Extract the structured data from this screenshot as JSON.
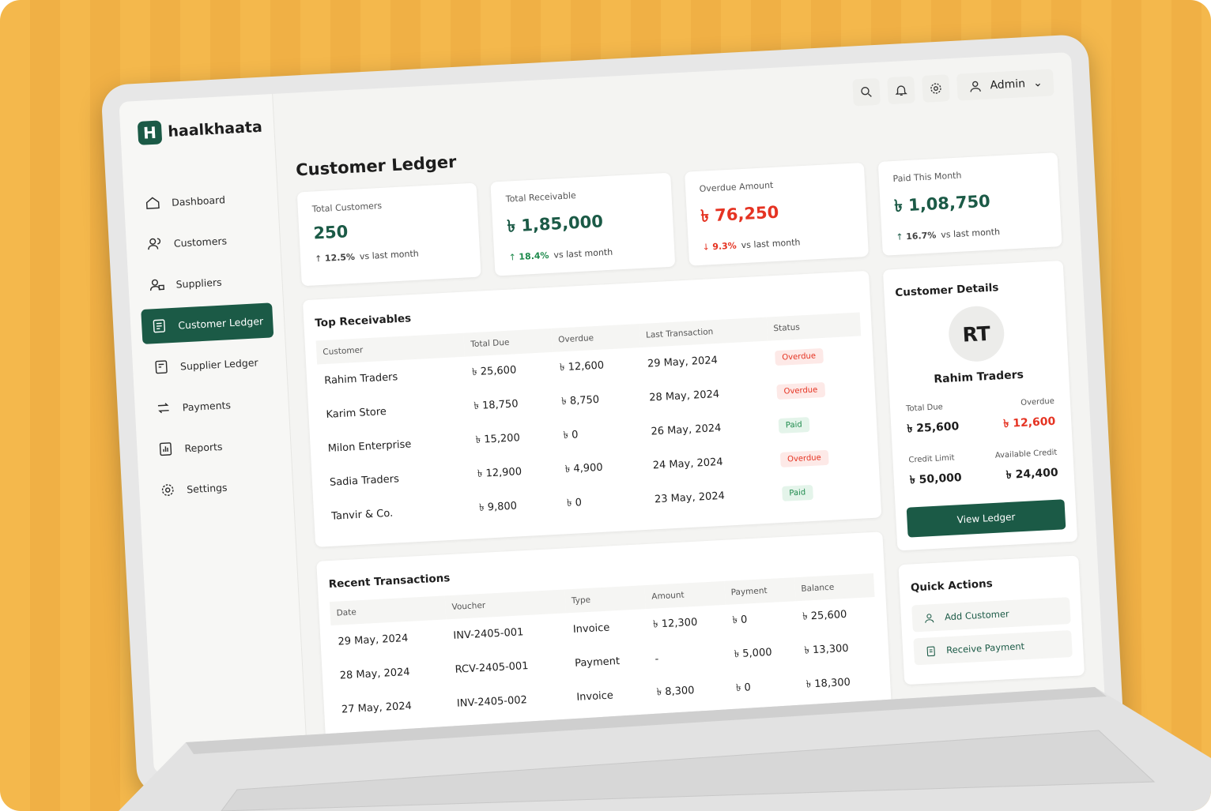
{
  "brand": {
    "logo": "H",
    "name": "haalkhaata"
  },
  "header": {
    "user": "Admin"
  },
  "nav": [
    "Dashboard",
    "Customers",
    "Suppliers",
    "Customer Ledger",
    "Supplier Ledger",
    "Payments",
    "Reports",
    "Settings"
  ],
  "page_title": "Customer Ledger",
  "stats": [
    {
      "label": "Total Customers",
      "value": "250",
      "change": "12.5%",
      "note": "vs last month"
    },
    {
      "label": "Total Receivable",
      "value": "৳ 1,85,000",
      "change": "18.4%",
      "note": "vs last month"
    },
    {
      "label": "Overdue Amount",
      "value": "৳ 76,250",
      "change": "9.3%",
      "note": "vs last month"
    },
    {
      "label": "Paid This Month",
      "value": "৳ 1,08,750",
      "change": "16.7%",
      "note": "vs last month"
    }
  ],
  "receivables": {
    "title": "Top Receivables",
    "columns": [
      "Customer",
      "Total Due",
      "Overdue",
      "Last Transaction",
      "Status"
    ],
    "rows": [
      [
        "Rahim Traders",
        "৳ 25,600",
        "৳ 12,600",
        "29 May, 2024",
        "Overdue"
      ],
      [
        "Karim Store",
        "৳ 18,750",
        "৳ 8,750",
        "28 May, 2024",
        "Overdue"
      ],
      [
        "Milon Enterprise",
        "৳ 15,200",
        "৳ 0",
        "26 May, 2024",
        "Paid"
      ],
      [
        "Sadia Traders",
        "৳ 12,900",
        "৳ 4,900",
        "24 May, 2024",
        "Overdue"
      ],
      [
        "Tanvir & Co.",
        "৳ 9,800",
        "৳ 0",
        "23 May, 2024",
        "Paid"
      ]
    ]
  },
  "transactions": {
    "title": "Recent Transactions",
    "columns": [
      "Date",
      "Voucher",
      "Type",
      "Amount",
      "Payment",
      "Balance"
    ],
    "rows": [
      [
        "29 May, 2024",
        "INV-2405-001",
        "Invoice",
        "৳ 12,300",
        "৳ 0",
        "৳ 25,600"
      ],
      [
        "28 May, 2024",
        "RCV-2405-001",
        "Payment",
        "-",
        "৳ 5,000",
        "৳ 13,300"
      ],
      [
        "27 May, 2024",
        "INV-2405-002",
        "Invoice",
        "৳ 8,300",
        "৳ 0",
        "৳ 18,300"
      ]
    ]
  },
  "details": {
    "title": "Customer Details",
    "initials": "RT",
    "name": "Rahim Traders",
    "fields": [
      {
        "label": "Total Due",
        "value": "৳ 25,600"
      },
      {
        "label": "Overdue",
        "value": "৳ 12,600"
      },
      {
        "label": "Credit Limit",
        "value": "৳ 50,000"
      },
      {
        "label": "Available Credit",
        "value": "৳ 24,400"
      }
    ],
    "button": "View Ledger"
  },
  "quick_actions": {
    "title": "Quick Actions",
    "items": [
      "Add Customer",
      "Receive Payment"
    ]
  }
}
